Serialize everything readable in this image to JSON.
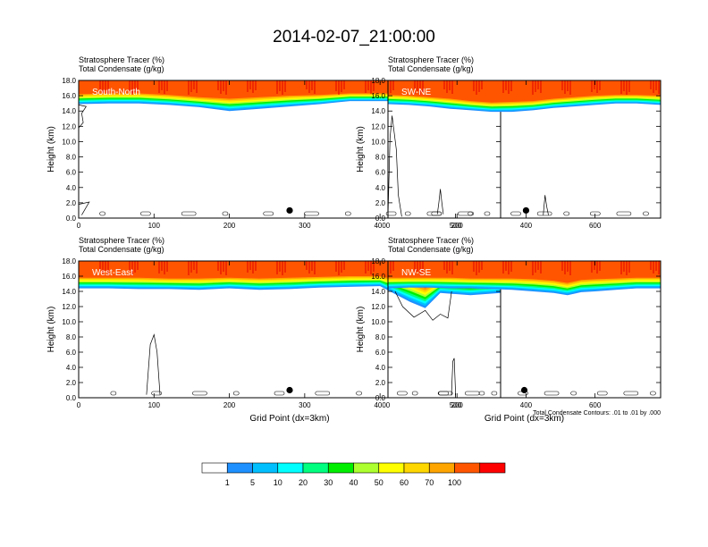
{
  "figure": {
    "title": "2014-02-07_21:00:00"
  },
  "footnote": "Total Condensate Contours: .01 to .01 by .000",
  "chart_data": [
    {
      "type": "heatmap",
      "panel_label": "South-North",
      "subtitle_lines": [
        "Stratosphere Tracer   (%)",
        "Total Condensate   (g/kg)"
      ],
      "xlabel": "",
      "ylabel": "Height (km)",
      "xlim": [
        0,
        560
      ],
      "ylim": [
        0,
        18
      ],
      "xticks": [
        0,
        100,
        200,
        300,
        400,
        500
      ],
      "yticks": [
        "0.0",
        "2.0",
        "4.0",
        "6.0",
        "8.0",
        "10.0",
        "12.0",
        "14.0",
        "16.0",
        "18.0"
      ],
      "tracer_profile": {
        "x": [
          0,
          40,
          80,
          120,
          160,
          200,
          240,
          280,
          320,
          360,
          400,
          440,
          480,
          520,
          560
        ],
        "base_km": [
          14.9,
          15.0,
          15.0,
          14.8,
          14.5,
          14.0,
          14.3,
          14.6,
          14.9,
          15.3,
          15.3,
          15.3,
          15.4,
          15.5,
          15.4
        ],
        "full_km": [
          16.2,
          16.3,
          16.3,
          16.1,
          15.8,
          15.6,
          15.8,
          16.0,
          16.1,
          16.3,
          16.3,
          16.3,
          16.4,
          16.4,
          16.3
        ]
      },
      "marker": {
        "x": 280,
        "y_km": 1.0
      },
      "condensate_contours": [
        {
          "x": [
            0,
            6,
            4,
            10,
            0
          ],
          "y_km": [
            11.8,
            12.5,
            13.7,
            14.6,
            14.8
          ]
        },
        {
          "x": [
            0,
            14,
            4
          ],
          "y_km": [
            1.8,
            2.1,
            0.4
          ]
        },
        {
          "x": [
            476,
            478,
            480,
            482,
            484
          ],
          "y_km": [
            0.5,
            2.0,
            3.8,
            2.0,
            0.5
          ]
        }
      ]
    },
    {
      "type": "heatmap",
      "panel_label": "SW-NE",
      "subtitle_lines": [
        "Stratosphere Tracer   (%)",
        "Total Condensate   (g/kg)"
      ],
      "xlabel": "",
      "ylabel": "Height (km)",
      "xlim": [
        0,
        790
      ],
      "ylim": [
        0,
        18
      ],
      "xticks": [
        0,
        200,
        400,
        600
      ],
      "yticks": [
        "0.0",
        "2.0",
        "4.0",
        "6.0",
        "8.0",
        "10.0",
        "12.0",
        "14.0",
        "16.0",
        "18.0"
      ],
      "tracer_profile": {
        "x": [
          0,
          60,
          120,
          180,
          240,
          300,
          360,
          420,
          480,
          540,
          600,
          660,
          720,
          790
        ],
        "base_km": [
          14.9,
          14.8,
          14.6,
          14.3,
          14.1,
          13.9,
          13.9,
          14.1,
          14.4,
          14.6,
          14.8,
          15.0,
          15.0,
          14.8
        ],
        "full_km": [
          16.1,
          16.0,
          15.8,
          15.6,
          15.3,
          15.1,
          15.2,
          15.3,
          15.6,
          15.8,
          16.0,
          16.1,
          16.1,
          16.0
        ]
      },
      "marker": {
        "x": 400,
        "y_km": 1.0
      },
      "condensate_contours": [
        {
          "x": [
            0,
            6,
            12,
            24,
            30,
            40
          ],
          "y_km": [
            0.2,
            10.5,
            13.4,
            9.0,
            3.0,
            0.2
          ]
        },
        {
          "x": [
            450,
            455,
            460,
            465
          ],
          "y_km": [
            0.4,
            3.0,
            1.5,
            0.4
          ]
        }
      ]
    },
    {
      "type": "heatmap",
      "panel_label": "West-East",
      "subtitle_lines": [
        "Stratosphere Tracer   (%)",
        "Total Condensate   (g/kg)"
      ],
      "xlabel": "Grid Point (dx=3km)",
      "ylabel": "Height (km)",
      "xlim": [
        0,
        560
      ],
      "ylim": [
        0,
        18
      ],
      "xticks": [
        0,
        100,
        200,
        300,
        400,
        500
      ],
      "yticks": [
        "0.0",
        "2.0",
        "4.0",
        "6.0",
        "8.0",
        "10.0",
        "12.0",
        "14.0",
        "16.0",
        "18.0"
      ],
      "tracer_profile": {
        "x": [
          0,
          40,
          80,
          120,
          160,
          200,
          240,
          280,
          320,
          360,
          400,
          440,
          460,
          480,
          520,
          560
        ],
        "base_km": [
          14.4,
          14.4,
          14.3,
          14.3,
          14.2,
          14.4,
          14.2,
          14.3,
          14.5,
          14.6,
          14.7,
          12.6,
          11.8,
          13.8,
          13.5,
          13.8
        ],
        "full_km": [
          15.8,
          15.8,
          15.8,
          15.7,
          15.7,
          15.8,
          15.7,
          15.8,
          15.9,
          16.0,
          16.0,
          15.2,
          14.4,
          15.4,
          15.2,
          15.5
        ]
      },
      "marker": {
        "x": 280,
        "y_km": 1.0
      },
      "condensate_contours": [
        {
          "x": [
            90,
            95,
            100,
            104,
            108
          ],
          "y_km": [
            0.4,
            7.0,
            8.3,
            6.0,
            0.4
          ]
        },
        {
          "x": [
            420,
            430,
            445,
            460,
            470,
            480,
            490,
            495
          ],
          "y_km": [
            14.0,
            12.0,
            10.6,
            11.5,
            10.2,
            11.0,
            10.5,
            14.0
          ]
        }
      ]
    },
    {
      "type": "heatmap",
      "panel_label": "NW-SE",
      "subtitle_lines": [
        "Stratosphere Tracer   (%)",
        "Total Condensate   (g/kg)"
      ],
      "xlabel": "Grid Point (dx=3km)",
      "ylabel": "Height (km)",
      "xlim": [
        0,
        790
      ],
      "ylim": [
        0,
        18
      ],
      "xticks": [
        0,
        200,
        400,
        600
      ],
      "yticks": [
        "0.0",
        "2.0",
        "4.0",
        "6.0",
        "8.0",
        "10.0",
        "12.0",
        "14.0",
        "16.0",
        "18.0"
      ],
      "tracer_profile": {
        "x": [
          0,
          60,
          120,
          180,
          240,
          300,
          360,
          420,
          480,
          520,
          560,
          600,
          660,
          720,
          790
        ],
        "base_km": [
          14.4,
          14.5,
          14.5,
          14.4,
          14.4,
          14.3,
          14.2,
          14.0,
          13.8,
          13.5,
          13.9,
          14.0,
          14.2,
          14.4,
          14.4
        ],
        "full_km": [
          15.8,
          15.8,
          15.8,
          15.8,
          15.7,
          15.7,
          15.7,
          15.6,
          15.4,
          15.1,
          15.5,
          15.6,
          15.7,
          15.8,
          15.8
        ]
      },
      "marker": {
        "x": 395,
        "y_km": 1.0
      },
      "condensate_contours": [
        {
          "x": [
            184,
            188,
            192,
            196
          ],
          "y_km": [
            0.3,
            4.8,
            5.2,
            0.3
          ]
        }
      ]
    }
  ],
  "colorbar": {
    "labels": [
      "1",
      "5",
      "10",
      "20",
      "30",
      "40",
      "50",
      "60",
      "70",
      "100"
    ],
    "colors": [
      "#ffffff",
      "#1e90ff",
      "#00bfff",
      "#00ffff",
      "#00ff7f",
      "#00ee00",
      "#adff2f",
      "#ffff00",
      "#ffd700",
      "#ffa500",
      "#ff5500",
      "#ff0000"
    ]
  }
}
